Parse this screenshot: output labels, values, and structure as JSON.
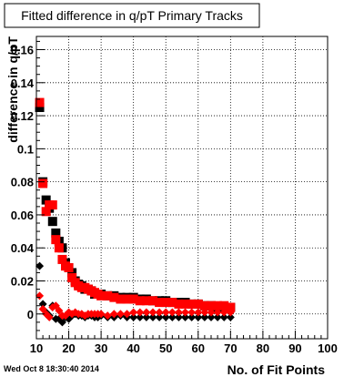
{
  "title": "Fitted difference in q/pT Primary Tracks",
  "footer": "Wed Oct  8 18:30:40 2014",
  "colors": {
    "series_black": "#000000",
    "series_red": "#ff0000",
    "frame": "#000000",
    "grid": "#000000"
  },
  "chart_data": {
    "type": "scatter",
    "title": "Fitted difference in q/pT Primary Tracks",
    "xlabel": "No. of Fit Points",
    "ylabel": "difference in q/pT",
    "xlim": [
      10,
      100
    ],
    "ylim": [
      -0.015,
      0.168
    ],
    "x_ticks": [
      10,
      20,
      30,
      40,
      50,
      60,
      70,
      80,
      90,
      100
    ],
    "y_ticks": [
      0,
      0.02,
      0.04,
      0.06,
      0.08,
      0.1,
      0.12,
      0.14,
      0.16
    ],
    "y_tick_labels": [
      "0",
      "0.02",
      "0.04",
      "0.06",
      "0.08",
      "0.1",
      "0.12",
      "0.14",
      "0.16"
    ],
    "grid": true,
    "series": [
      {
        "marker": "square",
        "color": "#000000",
        "points": [
          [
            11,
            0.125
          ],
          [
            12,
            0.08
          ],
          [
            13,
            0.069
          ],
          [
            14,
            0.064
          ],
          [
            15,
            0.056
          ],
          [
            16,
            0.049
          ],
          [
            17,
            0.044
          ],
          [
            18,
            0.04
          ],
          [
            19,
            0.031
          ],
          [
            20,
            0.028
          ],
          [
            21,
            0.025
          ],
          [
            22,
            0.02
          ],
          [
            23,
            0.018
          ],
          [
            24,
            0.017
          ],
          [
            25,
            0.015
          ],
          [
            26,
            0.015
          ],
          [
            27,
            0.014
          ],
          [
            28,
            0.012
          ],
          [
            29,
            0.012
          ],
          [
            30,
            0.012
          ],
          [
            32,
            0.011
          ],
          [
            34,
            0.011
          ],
          [
            36,
            0.01
          ],
          [
            38,
            0.01
          ],
          [
            40,
            0.01
          ],
          [
            42,
            0.009
          ],
          [
            44,
            0.009
          ],
          [
            46,
            0.008
          ],
          [
            48,
            0.008
          ],
          [
            50,
            0.008
          ],
          [
            52,
            0.007
          ],
          [
            54,
            0.007
          ],
          [
            56,
            0.007
          ],
          [
            58,
            0.006
          ],
          [
            60,
            0.006
          ],
          [
            62,
            0.005
          ],
          [
            64,
            0.005
          ],
          [
            66,
            0.004
          ],
          [
            68,
            0.004
          ],
          [
            70,
            0.004
          ]
        ]
      },
      {
        "marker": "square",
        "color": "#ff0000",
        "points": [
          [
            11,
            0.128
          ],
          [
            12,
            0.079
          ],
          [
            13,
            0.062
          ],
          [
            14,
            0.066
          ],
          [
            15,
            0.066
          ],
          [
            16,
            0.045
          ],
          [
            17,
            0.04
          ],
          [
            18,
            0.033
          ],
          [
            19,
            0.029
          ],
          [
            20,
            0.028
          ],
          [
            21,
            0.022
          ],
          [
            22,
            0.019
          ],
          [
            23,
            0.017
          ],
          [
            24,
            0.016
          ],
          [
            25,
            0.016
          ],
          [
            26,
            0.015
          ],
          [
            27,
            0.014
          ],
          [
            28,
            0.013
          ],
          [
            29,
            0.012
          ],
          [
            30,
            0.011
          ],
          [
            32,
            0.011
          ],
          [
            34,
            0.01
          ],
          [
            36,
            0.009
          ],
          [
            38,
            0.009
          ],
          [
            40,
            0.009
          ],
          [
            42,
            0.008
          ],
          [
            44,
            0.008
          ],
          [
            46,
            0.008
          ],
          [
            48,
            0.007
          ],
          [
            50,
            0.007
          ],
          [
            52,
            0.007
          ],
          [
            54,
            0.006
          ],
          [
            56,
            0.006
          ],
          [
            58,
            0.006
          ],
          [
            60,
            0.006
          ],
          [
            62,
            0.005
          ],
          [
            64,
            0.005
          ],
          [
            66,
            0.005
          ],
          [
            68,
            0.005
          ],
          [
            70,
            0.004
          ]
        ]
      },
      {
        "marker": "diamond",
        "color": "#000000",
        "points": [
          [
            11,
            0.029
          ],
          [
            12,
            0.006
          ],
          [
            13,
            0.001
          ],
          [
            14,
            -0.001
          ],
          [
            15,
            0.005
          ],
          [
            16,
            -0.003
          ],
          [
            17,
            -0.003
          ],
          [
            18,
            -0.005
          ],
          [
            19,
            -0.002
          ],
          [
            20,
            -0.003
          ],
          [
            21,
            -0.001
          ],
          [
            22,
            0.0
          ],
          [
            23,
            -0.001
          ],
          [
            24,
            -0.001
          ],
          [
            25,
            -0.002
          ],
          [
            26,
            -0.001
          ],
          [
            27,
            -0.001
          ],
          [
            28,
            -0.002
          ],
          [
            29,
            -0.002
          ],
          [
            30,
            -0.001
          ],
          [
            32,
            -0.002
          ],
          [
            34,
            -0.002
          ],
          [
            36,
            -0.001
          ],
          [
            38,
            -0.002
          ],
          [
            40,
            -0.002
          ],
          [
            42,
            -0.002
          ],
          [
            44,
            -0.002
          ],
          [
            46,
            -0.002
          ],
          [
            48,
            -0.002
          ],
          [
            50,
            -0.002
          ],
          [
            52,
            -0.002
          ],
          [
            54,
            -0.002
          ],
          [
            56,
            -0.002
          ],
          [
            58,
            -0.002
          ],
          [
            60,
            -0.002
          ],
          [
            62,
            -0.002
          ],
          [
            64,
            -0.002
          ],
          [
            66,
            -0.002
          ],
          [
            68,
            -0.002
          ],
          [
            70,
            -0.002
          ]
        ]
      },
      {
        "marker": "diamond",
        "color": "#ff0000",
        "points": [
          [
            11,
            0.011
          ],
          [
            12,
            0.003
          ],
          [
            13,
            0.0
          ],
          [
            14,
            -0.002
          ],
          [
            15,
            0.004
          ],
          [
            16,
            0.005
          ],
          [
            17,
            0.002
          ],
          [
            18,
            -0.001
          ],
          [
            19,
            -0.001
          ],
          [
            20,
            0.001
          ],
          [
            21,
            0.0
          ],
          [
            22,
            0.001
          ],
          [
            23,
            0.0
          ],
          [
            24,
            0.0
          ],
          [
            25,
            -0.001
          ],
          [
            26,
            0.0
          ],
          [
            27,
            0.0
          ],
          [
            28,
            0.0
          ],
          [
            29,
            0.0
          ],
          [
            30,
            0.0
          ],
          [
            32,
            -0.001
          ],
          [
            34,
            0.0
          ],
          [
            36,
            0.0
          ],
          [
            38,
            0.0
          ],
          [
            40,
            0.001
          ],
          [
            42,
            0.001
          ],
          [
            44,
            0.001
          ],
          [
            46,
            0.001
          ],
          [
            48,
            0.001
          ],
          [
            50,
            0.001
          ],
          [
            52,
            0.001
          ],
          [
            54,
            0.001
          ],
          [
            56,
            0.001
          ],
          [
            58,
            0.001
          ],
          [
            60,
            0.001
          ],
          [
            62,
            0.001
          ],
          [
            64,
            0.001
          ],
          [
            66,
            0.001
          ],
          [
            68,
            0.001
          ],
          [
            70,
            0.001
          ]
        ]
      }
    ]
  }
}
